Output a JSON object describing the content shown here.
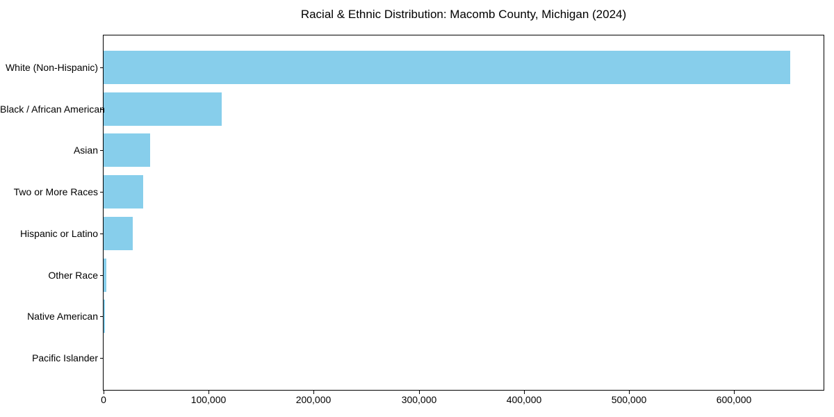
{
  "chart_data": {
    "type": "bar",
    "orientation": "horizontal",
    "title": "Racial & Ethnic Distribution: Macomb County, Michigan (2024)",
    "categories": [
      "White (Non-Hispanic)",
      "Black / African American",
      "Asian",
      "Two or More Races",
      "Hispanic or Latino",
      "Other Race",
      "Native American",
      "Pacific Islander"
    ],
    "values": [
      653000,
      112500,
      44000,
      38000,
      28000,
      2800,
      1200,
      300
    ],
    "xlabel": "",
    "ylabel": "",
    "xlim": [
      0,
      685650
    ],
    "x_ticks": [
      0,
      100000,
      200000,
      300000,
      400000,
      500000,
      600000
    ],
    "x_tick_labels": [
      "0",
      "100,000",
      "200,000",
      "300,000",
      "400,000",
      "500,000",
      "600,000"
    ],
    "bar_color": "#87CEEB",
    "axis_color": "#000000",
    "background_color": "#FFFFFF",
    "grid": false,
    "legend": null
  }
}
